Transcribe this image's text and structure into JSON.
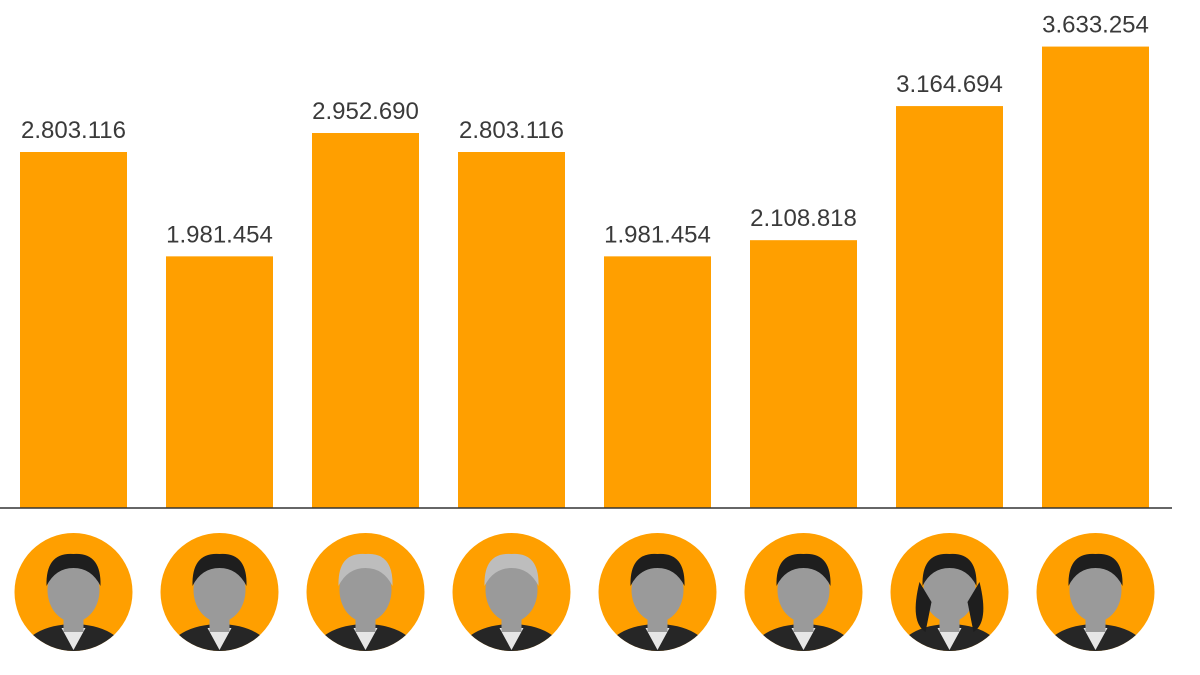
{
  "chart_data": {
    "type": "bar",
    "title": "",
    "xlabel": "",
    "ylabel": "",
    "ylim": [
      0,
      4000000
    ],
    "grid": false,
    "categories": [
      "person-1",
      "person-2",
      "person-3",
      "person-4",
      "person-5",
      "person-6",
      "person-7",
      "person-8"
    ],
    "values": [
      2803116,
      1981454,
      2952690,
      2803116,
      1981454,
      2108818,
      3164694,
      3633254
    ],
    "value_labels": [
      "2.803.116",
      "1.981.454",
      "2.952.690",
      "2.803.116",
      "1.981.454",
      "2.108.818",
      "3.164.694",
      "3.633.254"
    ],
    "bar_color": "#ff9f00",
    "label_color": "#3a3a3a",
    "axis_color": "#333333",
    "category_markers": "portrait-photos"
  }
}
